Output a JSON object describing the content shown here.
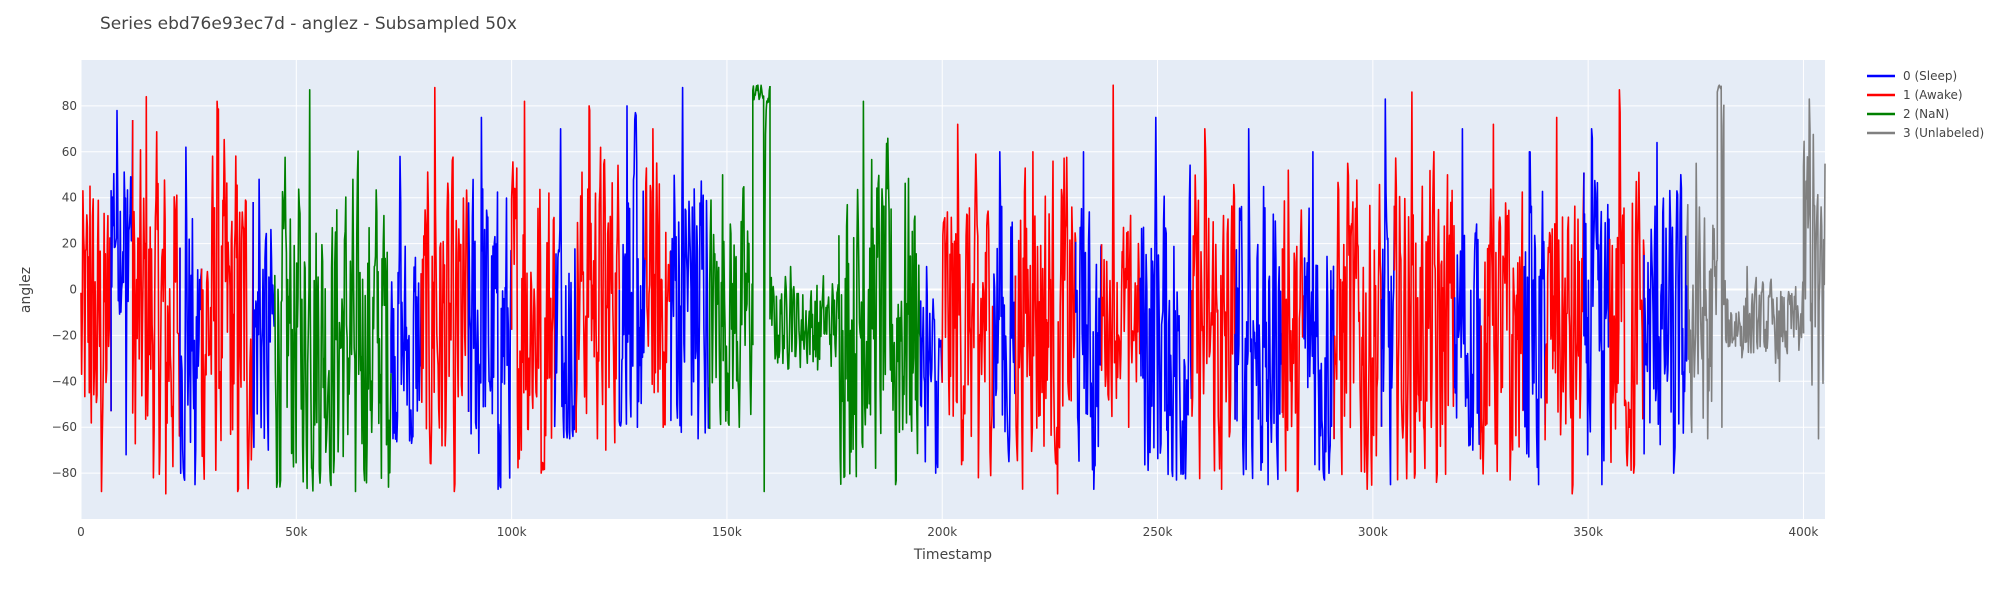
{
  "chart_data": {
    "type": "line",
    "title": "Series ebd76e93ec7d - anglez - Subsampled 50x",
    "xlabel": "Timestamp",
    "ylabel": "anglez",
    "xlim": [
      0,
      405000
    ],
    "ylim": [
      -100,
      100
    ],
    "x_ticks": [
      0,
      50000,
      100000,
      150000,
      200000,
      250000,
      300000,
      350000,
      400000
    ],
    "x_tick_labels": [
      "0",
      "50k",
      "100k",
      "150k",
      "200k",
      "250k",
      "300k",
      "350k",
      "400k"
    ],
    "y_ticks": [
      -80,
      -60,
      -40,
      -20,
      0,
      20,
      40,
      60,
      80
    ],
    "y_tick_labels": [
      "−80",
      "−60",
      "−40",
      "−20",
      "0",
      "20",
      "40",
      "60",
      "80"
    ],
    "grid": true,
    "legend_position": "top-right-outside",
    "series": [
      {
        "name": "0 (Sleep)",
        "color": "#0000ff"
      },
      {
        "name": "1 (Awake)",
        "color": "#ff0000"
      },
      {
        "name": "2 (NaN)",
        "color": "#008000"
      },
      {
        "name": "3 (Unlabeled)",
        "color": "#808080"
      }
    ],
    "segments": [
      {
        "series": 1,
        "x": [
          0,
          7000
        ],
        "center": -20,
        "amp": 60,
        "extremes": [
          -88,
          45
        ]
      },
      {
        "series": 0,
        "x": [
          7000,
          12000
        ],
        "center": 35,
        "amp": 45,
        "extremes": [
          -72,
          78
        ]
      },
      {
        "series": 1,
        "x": [
          12000,
          23000
        ],
        "center": -15,
        "amp": 65,
        "extremes": [
          -89,
          84
        ]
      },
      {
        "series": 0,
        "x": [
          23000,
          28000
        ],
        "center": -20,
        "amp": 55,
        "extremes": [
          -85,
          62
        ]
      },
      {
        "series": 1,
        "x": [
          28000,
          40000
        ],
        "center": -15,
        "amp": 65,
        "extremes": [
          -88,
          82
        ]
      },
      {
        "series": 0,
        "x": [
          40000,
          45000
        ],
        "center": -20,
        "amp": 50,
        "extremes": [
          -70,
          48
        ]
      },
      {
        "series": 2,
        "x": [
          45000,
          72000
        ],
        "center": -20,
        "amp": 60,
        "extremes": [
          -88,
          87
        ]
      },
      {
        "series": 0,
        "x": [
          72000,
          79000
        ],
        "center": -25,
        "amp": 45,
        "extremes": [
          -67,
          58
        ]
      },
      {
        "series": 1,
        "x": [
          79000,
          90000
        ],
        "center": -20,
        "amp": 60,
        "extremes": [
          -88,
          88
        ]
      },
      {
        "series": 0,
        "x": [
          90000,
          100000
        ],
        "center": -20,
        "amp": 60,
        "extremes": [
          -87,
          75
        ]
      },
      {
        "series": 1,
        "x": [
          100000,
          110000
        ],
        "center": -10,
        "amp": 60,
        "extremes": [
          -80,
          82
        ]
      },
      {
        "series": 0,
        "x": [
          110000,
          115000
        ],
        "center": -10,
        "amp": 55,
        "extremes": [
          -65,
          70
        ]
      },
      {
        "series": 1,
        "x": [
          115000,
          125000
        ],
        "center": 0,
        "amp": 55,
        "extremes": [
          -70,
          80
        ]
      },
      {
        "series": 0,
        "x": [
          125000,
          131000
        ],
        "center": 0,
        "amp": 60,
        "extremes": [
          -60,
          80
        ]
      },
      {
        "series": 1,
        "x": [
          131000,
          137000
        ],
        "center": -10,
        "amp": 55,
        "extremes": [
          -60,
          70
        ]
      },
      {
        "series": 0,
        "x": [
          137000,
          146000
        ],
        "center": 0,
        "amp": 65,
        "extremes": [
          -65,
          88
        ]
      },
      {
        "series": 2,
        "x": [
          146000,
          156000
        ],
        "center": -10,
        "amp": 45,
        "extremes": [
          -60,
          50
        ]
      },
      {
        "series": 2,
        "x": [
          156000,
          160000
        ],
        "center": 85,
        "amp": 4,
        "extremes": [
          -88,
          89
        ]
      },
      {
        "series": 2,
        "x": [
          160000,
          176000
        ],
        "center": -15,
        "amp": 18,
        "extremes": [
          -35,
          10
        ]
      },
      {
        "series": 2,
        "x": [
          176000,
          195000
        ],
        "center": -10,
        "amp": 60,
        "extremes": [
          -85,
          82
        ]
      },
      {
        "series": 0,
        "x": [
          195000,
          200000
        ],
        "center": -40,
        "amp": 35,
        "extremes": [
          -80,
          10
        ]
      },
      {
        "series": 1,
        "x": [
          200000,
          212000
        ],
        "center": -15,
        "amp": 55,
        "extremes": [
          -82,
          72
        ]
      },
      {
        "series": 0,
        "x": [
          212000,
          217000
        ],
        "center": -20,
        "amp": 55,
        "extremes": [
          -75,
          60
        ]
      },
      {
        "series": 1,
        "x": [
          217000,
          231000
        ],
        "center": -10,
        "amp": 60,
        "extremes": [
          -89,
          60
        ]
      },
      {
        "series": 0,
        "x": [
          231000,
          237000
        ],
        "center": -25,
        "amp": 50,
        "extremes": [
          -87,
          60
        ]
      },
      {
        "series": 1,
        "x": [
          237000,
          246000
        ],
        "center": -10,
        "amp": 35,
        "extremes": [
          -60,
          89
        ]
      },
      {
        "series": 0,
        "x": [
          246000,
          258000
        ],
        "center": -20,
        "amp": 60,
        "extremes": [
          -83,
          75
        ]
      },
      {
        "series": 1,
        "x": [
          258000,
          268000
        ],
        "center": -20,
        "amp": 60,
        "extremes": [
          -87,
          70
        ]
      },
      {
        "series": 0,
        "x": [
          268000,
          279000
        ],
        "center": -20,
        "amp": 60,
        "extremes": [
          -85,
          70
        ]
      },
      {
        "series": 1,
        "x": [
          279000,
          284000
        ],
        "center": -25,
        "amp": 55,
        "extremes": [
          -88,
          52
        ]
      },
      {
        "series": 0,
        "x": [
          284000,
          291000
        ],
        "center": -20,
        "amp": 60,
        "extremes": [
          -83,
          60
        ]
      },
      {
        "series": 1,
        "x": [
          291000,
          302000
        ],
        "center": -20,
        "amp": 60,
        "extremes": [
          -87,
          55
        ]
      },
      {
        "series": 0,
        "x": [
          302000,
          305000
        ],
        "center": -20,
        "amp": 55,
        "extremes": [
          -85,
          83
        ]
      },
      {
        "series": 1,
        "x": [
          305000,
          319000
        ],
        "center": -15,
        "amp": 60,
        "extremes": [
          -84,
          86
        ]
      },
      {
        "series": 0,
        "x": [
          319000,
          325000
        ],
        "center": -20,
        "amp": 55,
        "extremes": [
          -70,
          70
        ]
      },
      {
        "series": 1,
        "x": [
          325000,
          335000
        ],
        "center": -20,
        "amp": 55,
        "extremes": [
          -83,
          72
        ]
      },
      {
        "series": 0,
        "x": [
          335000,
          340000
        ],
        "center": -20,
        "amp": 55,
        "extremes": [
          -85,
          60
        ]
      },
      {
        "series": 1,
        "x": [
          340000,
          349000
        ],
        "center": -20,
        "amp": 55,
        "extremes": [
          -89,
          75
        ]
      },
      {
        "series": 0,
        "x": [
          349000,
          355000
        ],
        "center": -20,
        "amp": 55,
        "extremes": [
          -85,
          70
        ]
      },
      {
        "series": 1,
        "x": [
          355000,
          363000
        ],
        "center": -15,
        "amp": 60,
        "extremes": [
          -80,
          87
        ]
      },
      {
        "series": 0,
        "x": [
          363000,
          373000
        ],
        "center": -20,
        "amp": 55,
        "extremes": [
          -80,
          64
        ]
      },
      {
        "series": 3,
        "x": [
          373000,
          380000
        ],
        "center": -15,
        "amp": 45,
        "extremes": [
          -65,
          55
        ]
      },
      {
        "series": 3,
        "x": [
          380000,
          381500
        ],
        "center": 88,
        "amp": 2,
        "extremes": [
          -60,
          89
        ]
      },
      {
        "series": 3,
        "x": [
          381500,
          400000
        ],
        "center": -15,
        "amp": 15,
        "extremes": [
          -40,
          10
        ]
      },
      {
        "series": 3,
        "x": [
          400000,
          405000
        ],
        "center": 10,
        "amp": 60,
        "extremes": [
          -65,
          83
        ]
      }
    ]
  }
}
